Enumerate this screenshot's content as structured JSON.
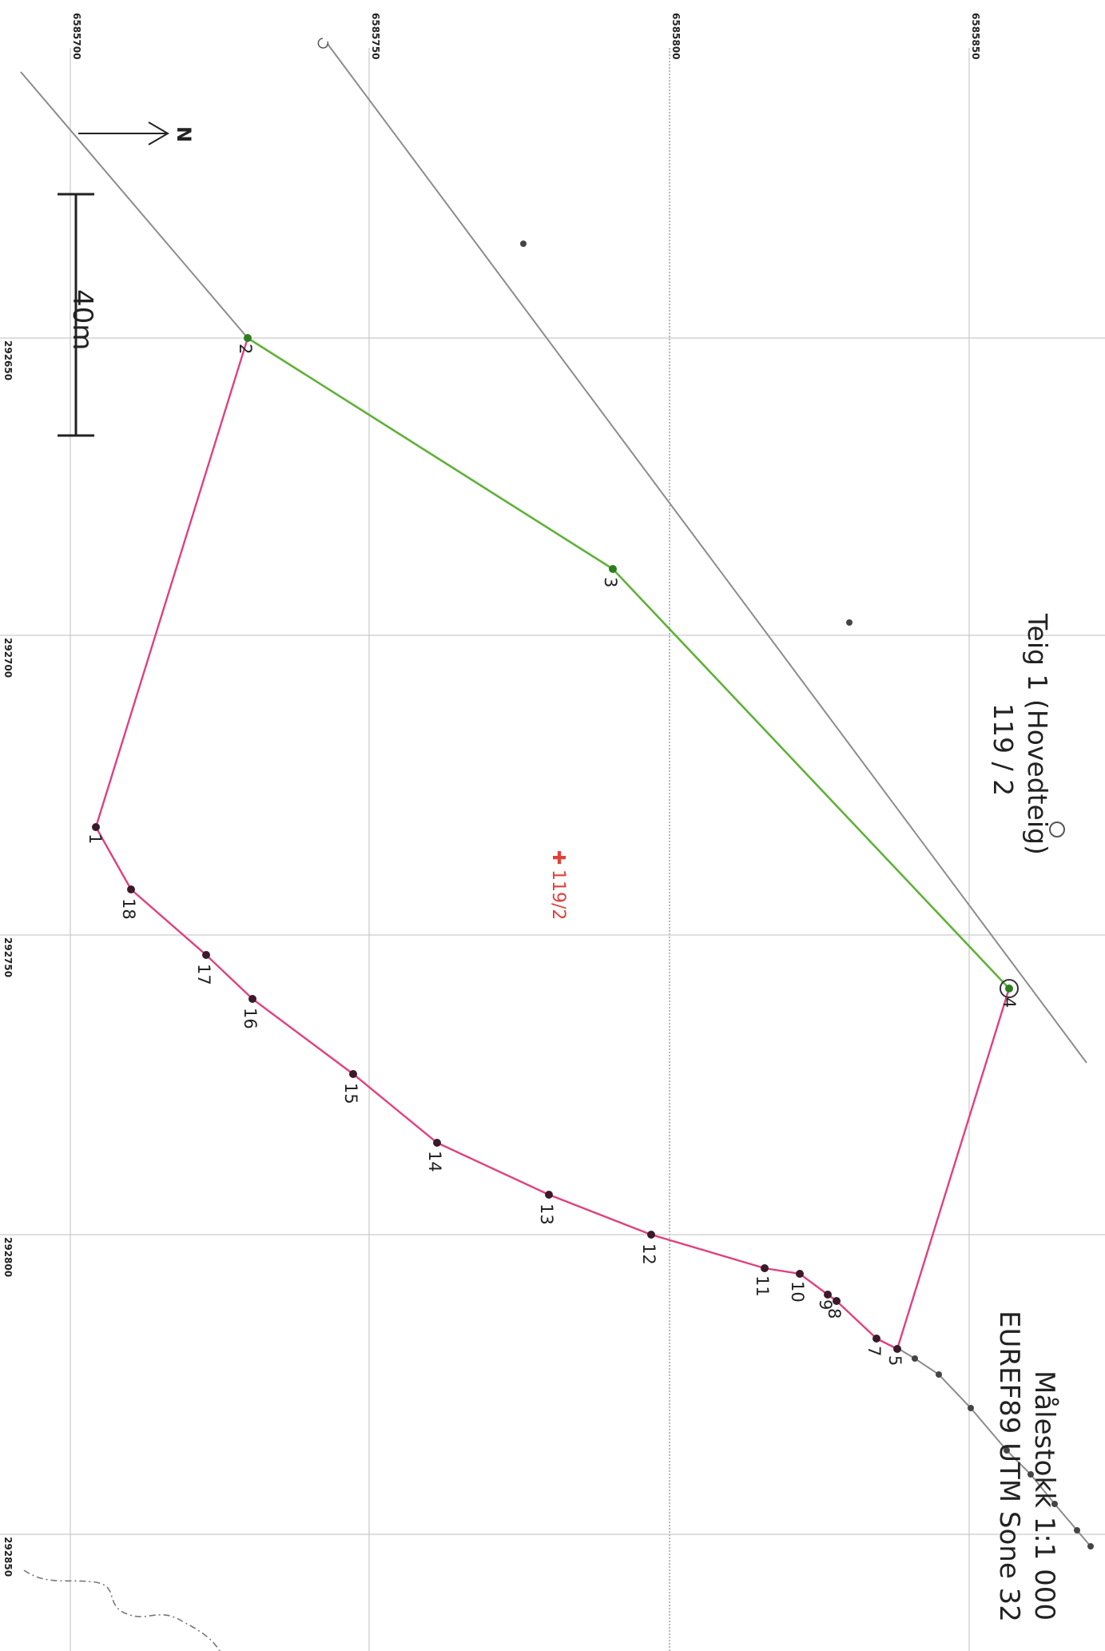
{
  "map": {
    "title_line1": "Teig 1 (Hovedteig)",
    "title_line2": "119 / 2",
    "parcel_label": "119/2",
    "scale_text": "Målestokk 1:1 000",
    "crs_text": "EUREF89 UTM Sone 32",
    "north_label": "N",
    "scalebar_label": "40m",
    "easting_ticks": [
      "6585700",
      "6585750",
      "6585800",
      "6585850"
    ],
    "northing_ticks": [
      "292650",
      "292700",
      "292750",
      "292800",
      "292850"
    ],
    "point_labels": [
      "1",
      "2",
      "3",
      "4",
      "5",
      "7",
      "8",
      "9",
      "10",
      "11",
      "12",
      "13",
      "14",
      "15",
      "16",
      "17",
      "18"
    ],
    "colors": {
      "boundary_pink": "#e0407f",
      "boundary_green": "#5fb13a",
      "road": "#8c8c8c",
      "parcel_label": "#e0403a"
    }
  }
}
